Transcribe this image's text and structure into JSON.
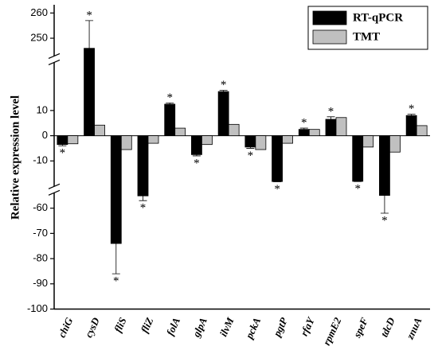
{
  "chart_data": {
    "type": "bar",
    "y_label": "Relative expression level",
    "categories": [
      "chiG",
      "cysD",
      "fliS",
      "fliZ",
      "folA",
      "glpA",
      "ilvM",
      "pckA",
      "pgtP",
      "rfaY",
      "rpmE2",
      "speF",
      "tdcD",
      "znuA"
    ],
    "series": [
      {
        "name": "RT-qPCR",
        "color": "#000000",
        "values": [
          -3.5,
          246,
          -74,
          -51,
          12.5,
          -7.5,
          17.5,
          -4.5,
          -19,
          2.5,
          6.5,
          -18.5,
          -50,
          8
        ],
        "errors": [
          0.5,
          11,
          12,
          6,
          0.5,
          0.5,
          0.5,
          0.5,
          0.5,
          0.5,
          1,
          0.5,
          12,
          0.5
        ],
        "labels": [
          "*",
          "*",
          "*",
          "*",
          "*",
          "*",
          "*",
          "*",
          "*",
          "*",
          "*",
          "*",
          "*",
          "*"
        ]
      },
      {
        "name": "TMT",
        "color": "#c0c0c0",
        "values": [
          -3.2,
          4.2,
          -5.5,
          -3,
          3,
          -3.5,
          4.5,
          -5.5,
          -3,
          2.5,
          7.2,
          -4.5,
          -6.5,
          4
        ]
      }
    ],
    "axis_segments": [
      {
        "ylim": [
          245,
          262
        ],
        "yticks": [
          250,
          260
        ]
      },
      {
        "ylim": [
          -18,
          27
        ],
        "yticks": [
          -10,
          0,
          10
        ]
      },
      {
        "ylim": [
          -100,
          -56
        ],
        "yticks": [
          -100,
          -90,
          -80,
          -70,
          -60
        ]
      }
    ],
    "legend": "top-right"
  }
}
